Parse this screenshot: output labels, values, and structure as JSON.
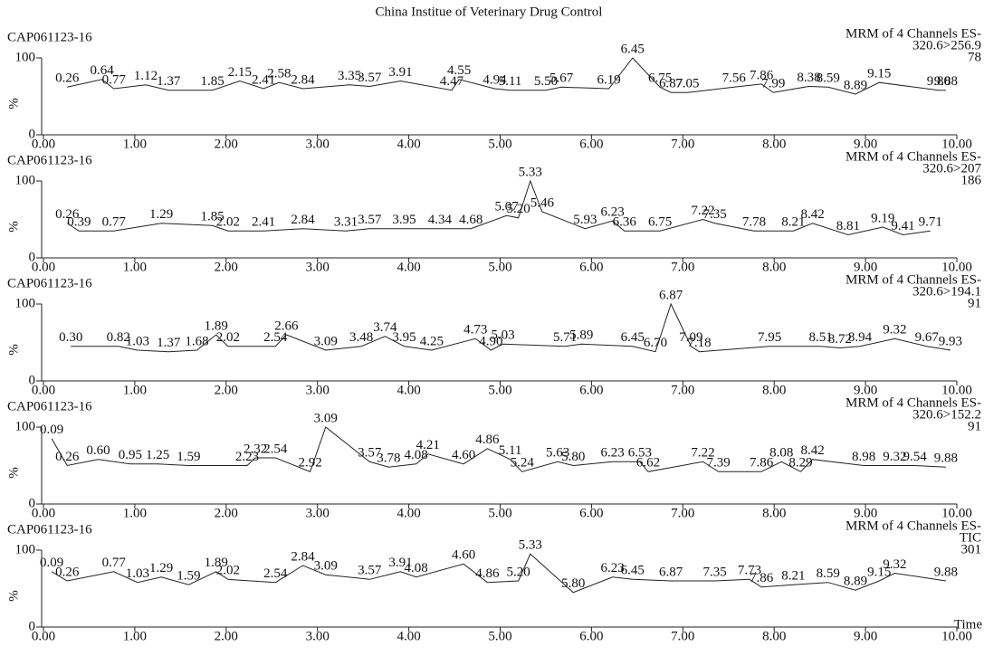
{
  "title": "China Institue of Veterinary Drug Control",
  "chart_data": [
    {
      "type": "line",
      "title": "CAP061123-16",
      "subtitle": [
        "MRM of 4 Channels ES-",
        "320.6>256.9"
      ],
      "intensity": 78,
      "y_label": "%",
      "xlim": [
        0,
        10
      ],
      "xticks": [
        {
          "value": 0,
          "label": "0.00"
        },
        {
          "value": 1,
          "label": "1.00"
        },
        {
          "value": 2,
          "label": "2.00"
        },
        {
          "value": 3,
          "label": "3.00"
        },
        {
          "value": 4,
          "label": "4.00"
        },
        {
          "value": 5,
          "label": "5.00"
        },
        {
          "value": 6,
          "label": "6.00"
        },
        {
          "value": 7,
          "label": "7.00"
        },
        {
          "value": 8,
          "label": "8.00"
        },
        {
          "value": 9,
          "label": "9.00"
        },
        {
          "value": 10,
          "label": "10.00"
        }
      ],
      "ylim": [
        0,
        100
      ],
      "yticks": [
        0,
        100
      ],
      "series": [
        {
          "color": "#222",
          "x": [
            0.26,
            0.64,
            0.77,
            1.12,
            1.37,
            1.85,
            2.15,
            2.41,
            2.58,
            2.84,
            3.35,
            3.57,
            3.91,
            4.47,
            4.55,
            4.94,
            5.11,
            5.5,
            5.67,
            6.19,
            6.45,
            6.75,
            6.87,
            7.05,
            7.56,
            7.86,
            7.99,
            8.38,
            8.59,
            8.89,
            9.15,
            9.8,
            9.88
          ],
          "values": [
            62,
            72,
            60,
            65,
            58,
            58,
            70,
            60,
            68,
            60,
            65,
            63,
            70,
            58,
            72,
            60,
            58,
            58,
            62,
            60,
            100,
            62,
            55,
            55,
            62,
            66,
            55,
            63,
            62,
            53,
            68,
            58,
            58
          ],
          "peak_labels": [
            "0.26",
            "0.64",
            "0.77",
            "1.12",
            "1.37",
            "1.85",
            "2.15",
            "2.41",
            "2.58",
            "2.84",
            "3.35",
            "3.57",
            "3.91",
            "4.47",
            "4.55",
            "4.94",
            "5.11",
            "5.50",
            "5.67",
            "6.19",
            "6.45",
            "6.75",
            "6.87",
            "7.05",
            "7.56",
            "7.86",
            "7.99",
            "8.38",
            "8.59",
            "8.89",
            "9.15",
            "9.80",
            "9.88"
          ]
        }
      ]
    },
    {
      "type": "line",
      "title": "CAP061123-16",
      "subtitle": [
        "MRM of 4 Channels ES-",
        "320.6>207"
      ],
      "intensity": 186,
      "y_label": "%",
      "xlim": [
        0,
        10
      ],
      "xticks": [
        {
          "value": 0,
          "label": "0.00"
        },
        {
          "value": 1,
          "label": "1.00"
        },
        {
          "value": 2,
          "label": "2.00"
        },
        {
          "value": 3,
          "label": "3.00"
        },
        {
          "value": 4,
          "label": "4.00"
        },
        {
          "value": 5,
          "label": "5.00"
        },
        {
          "value": 6,
          "label": "6.00"
        },
        {
          "value": 7,
          "label": "7.00"
        },
        {
          "value": 8,
          "label": "8.00"
        },
        {
          "value": 9,
          "label": "9.00"
        },
        {
          "value": 10,
          "label": "10.00"
        }
      ],
      "ylim": [
        0,
        100
      ],
      "yticks": [
        0,
        100
      ],
      "series": [
        {
          "color": "#222",
          "x": [
            0.26,
            0.39,
            0.77,
            1.29,
            1.85,
            2.02,
            2.41,
            2.84,
            3.31,
            3.57,
            3.95,
            4.34,
            4.68,
            5.07,
            5.2,
            5.33,
            5.46,
            5.93,
            6.23,
            6.36,
            6.75,
            7.22,
            7.35,
            7.78,
            8.21,
            8.42,
            8.81,
            9.19,
            9.41,
            9.71
          ],
          "values": [
            45,
            35,
            35,
            45,
            42,
            35,
            35,
            38,
            35,
            38,
            38,
            38,
            38,
            55,
            52,
            100,
            60,
            38,
            48,
            35,
            35,
            50,
            45,
            35,
            35,
            45,
            30,
            40,
            30,
            35
          ],
          "peak_labels": [
            "0.26",
            "0.39",
            "0.77",
            "1.29",
            "1.85",
            "2.02",
            "2.41",
            "2.84",
            "3.31",
            "3.57",
            "3.95",
            "4.34",
            "4.68",
            "5.07",
            "5.20",
            "5.33",
            "5.46",
            "5.93",
            "6.23",
            "6.36",
            "6.75",
            "7.22",
            "7.35",
            "7.78",
            "8.21",
            "8.42",
            "8.81",
            "9.19",
            "9.41",
            "9.71"
          ]
        }
      ]
    },
    {
      "type": "line",
      "title": "CAP061123-16",
      "subtitle": [
        "MRM of 4 Channels ES-",
        "320.6>194.1"
      ],
      "intensity": 91,
      "y_label": "%",
      "xlim": [
        0,
        10
      ],
      "xticks": [
        {
          "value": 0,
          "label": "0.00"
        },
        {
          "value": 1,
          "label": "1.00"
        },
        {
          "value": 2,
          "label": "2.00"
        },
        {
          "value": 3,
          "label": "3.00"
        },
        {
          "value": 4,
          "label": "4.00"
        },
        {
          "value": 5,
          "label": "5.00"
        },
        {
          "value": 6,
          "label": "6.00"
        },
        {
          "value": 7,
          "label": "7.00"
        },
        {
          "value": 8,
          "label": "8.00"
        },
        {
          "value": 9,
          "label": "9.00"
        },
        {
          "value": 10,
          "label": "10.00"
        }
      ],
      "ylim": [
        0,
        100
      ],
      "yticks": [
        0,
        100
      ],
      "series": [
        {
          "color": "#222",
          "x": [
            0.3,
            0.82,
            1.03,
            1.37,
            1.68,
            1.89,
            2.02,
            2.54,
            2.66,
            3.09,
            3.48,
            3.74,
            3.95,
            4.25,
            4.73,
            4.9,
            5.03,
            5.71,
            5.89,
            6.45,
            6.7,
            6.87,
            7.09,
            7.18,
            7.95,
            8.51,
            8.72,
            8.94,
            9.32,
            9.67,
            9.93
          ],
          "values": [
            45,
            45,
            40,
            38,
            40,
            60,
            45,
            45,
            60,
            40,
            45,
            58,
            45,
            40,
            55,
            40,
            48,
            45,
            48,
            45,
            38,
            100,
            45,
            38,
            45,
            45,
            43,
            45,
            55,
            45,
            40
          ],
          "peak_labels": [
            "0.30",
            "0.82",
            "1.03",
            "1.37",
            "1.68",
            "1.89",
            "2.02",
            "2.54",
            "2.66",
            "3.09",
            "3.48",
            "3.74",
            "3.95",
            "4.25",
            "4.73",
            "4.90",
            "5.03",
            "5.71",
            "5.89",
            "6.45",
            "6.70",
            "6.87",
            "7.09",
            "7.18",
            "7.95",
            "8.51",
            "8.72",
            "8.94",
            "9.32",
            "9.67",
            "9.93"
          ]
        }
      ]
    },
    {
      "type": "line",
      "title": "CAP061123-16",
      "subtitle": [
        "MRM of 4 Channels ES-",
        "320.6>152.2"
      ],
      "intensity": 91,
      "y_label": "%",
      "xlim": [
        0,
        10
      ],
      "xticks": [
        {
          "value": 0,
          "label": "0.00"
        },
        {
          "value": 1,
          "label": "1.00"
        },
        {
          "value": 2,
          "label": "2.00"
        },
        {
          "value": 3,
          "label": "3.00"
        },
        {
          "value": 4,
          "label": "4.00"
        },
        {
          "value": 5,
          "label": "5.00"
        },
        {
          "value": 6,
          "label": "6.00"
        },
        {
          "value": 7,
          "label": "7.00"
        },
        {
          "value": 8,
          "label": "8.00"
        },
        {
          "value": 9,
          "label": "9.00"
        },
        {
          "value": 10,
          "label": "10.00"
        }
      ],
      "ylim": [
        0,
        100
      ],
      "yticks": [
        0,
        100
      ],
      "series": [
        {
          "color": "#222",
          "x": [
            0.09,
            0.26,
            0.6,
            0.95,
            1.25,
            1.59,
            2.23,
            2.32,
            2.54,
            2.92,
            3.09,
            3.57,
            3.78,
            4.08,
            4.21,
            4.6,
            4.86,
            5.11,
            5.24,
            5.63,
            5.8,
            6.23,
            6.53,
            6.62,
            7.22,
            7.39,
            7.86,
            8.08,
            8.29,
            8.42,
            8.98,
            9.32,
            9.54,
            9.88
          ],
          "values": [
            85,
            50,
            58,
            52,
            52,
            50,
            50,
            60,
            60,
            42,
            100,
            55,
            48,
            52,
            65,
            52,
            72,
            58,
            42,
            55,
            50,
            55,
            55,
            42,
            55,
            42,
            42,
            55,
            42,
            58,
            50,
            50,
            50,
            48
          ],
          "peak_labels": [
            "0.09",
            "0.26",
            "0.60",
            "0.95",
            "1.25",
            "1.59",
            "2.23",
            "2.32",
            "2.54",
            "2.92",
            "3.09",
            "3.57",
            "3.78",
            "4.08",
            "4.21",
            "4.60",
            "4.86",
            "5.11",
            "5.24",
            "5.63",
            "5.80",
            "6.23",
            "6.53",
            "6.62",
            "7.22",
            "7.39",
            "7.86",
            "8.08",
            "8.29",
            "8.42",
            "8.98",
            "9.32",
            "9.54",
            "9.88"
          ]
        }
      ]
    },
    {
      "type": "line",
      "title": "CAP061123-16",
      "subtitle": [
        "MRM of 4 Channels ES-",
        "TIC"
      ],
      "intensity": 301,
      "y_label": "%",
      "x_label": "Time",
      "xlim": [
        0,
        10
      ],
      "xticks": [
        {
          "value": 0,
          "label": "0.00"
        },
        {
          "value": 1,
          "label": "1.00"
        },
        {
          "value": 2,
          "label": "2.00"
        },
        {
          "value": 3,
          "label": "3.00"
        },
        {
          "value": 4,
          "label": "4.00"
        },
        {
          "value": 5,
          "label": "5.00"
        },
        {
          "value": 6,
          "label": "6.00"
        },
        {
          "value": 7,
          "label": "7.00"
        },
        {
          "value": 8,
          "label": "8.00"
        },
        {
          "value": 9,
          "label": "9.00"
        },
        {
          "value": 10,
          "label": "10.00"
        }
      ],
      "ylim": [
        0,
        100
      ],
      "yticks": [
        0,
        100
      ],
      "series": [
        {
          "color": "#222",
          "x": [
            0.09,
            0.26,
            0.77,
            1.03,
            1.29,
            1.59,
            1.89,
            2.02,
            2.54,
            2.84,
            3.09,
            3.57,
            3.91,
            4.08,
            4.6,
            4.86,
            5.2,
            5.33,
            5.8,
            6.23,
            6.45,
            6.87,
            7.35,
            7.73,
            7.86,
            8.21,
            8.59,
            8.89,
            9.15,
            9.32,
            9.88
          ],
          "values": [
            72,
            60,
            72,
            58,
            65,
            55,
            72,
            62,
            58,
            80,
            68,
            62,
            72,
            65,
            82,
            58,
            60,
            95,
            45,
            65,
            62,
            60,
            60,
            62,
            52,
            55,
            58,
            48,
            60,
            70,
            60
          ],
          "peak_labels": [
            "0.09",
            "0.26",
            "0.77",
            "1.03",
            "1.29",
            "1.59",
            "1.89",
            "2.02",
            "2.54",
            "2.84",
            "3.09",
            "3.57",
            "3.91",
            "4.08",
            "4.60",
            "4.86",
            "5.20",
            "5.33",
            "5.80",
            "6.23",
            "6.45",
            "6.87",
            "7.35",
            "7.73",
            "7.86",
            "8.21",
            "8.59",
            "8.89",
            "9.15",
            "9.32",
            "9.88"
          ]
        }
      ]
    }
  ]
}
